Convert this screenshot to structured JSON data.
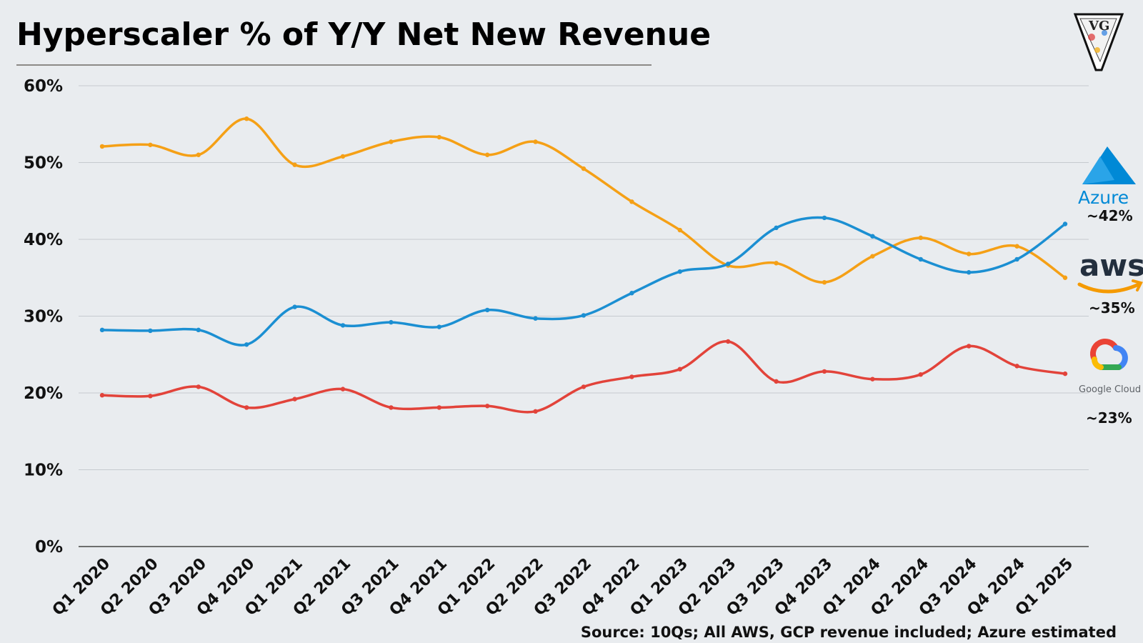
{
  "colors": {
    "background": "#e9ecef",
    "azure": "#1b8fd2",
    "aws": "#f5a016",
    "google": "#e2433a",
    "grid": "#c6cacf"
  },
  "header": {
    "title": "Hyperscaler % of Y/Y Net New Revenue",
    "brand_mark_letters": "VG",
    "brand_mark_icon": "vg-monogram-icon"
  },
  "footer": {
    "source": "Source: 10Qs; All AWS, GCP revenue included; Azure estimated"
  },
  "legend": {
    "placement": "right",
    "items": [
      {
        "series": "azure",
        "logo_icon": "azure-logo-icon",
        "logo_text": "Azure",
        "value_label": "~42%"
      },
      {
        "series": "aws",
        "logo_icon": "aws-logo-icon",
        "logo_text": "aws",
        "value_label": "~35%"
      },
      {
        "series": "google",
        "logo_icon": "google-cloud-logo-icon",
        "logo_text": "Google Cloud",
        "value_label": "~23%"
      }
    ]
  },
  "chart_data": {
    "type": "line",
    "title": "Hyperscaler % of Y/Y Net New Revenue",
    "xlabel": "",
    "ylabel": "",
    "ylim": [
      0,
      60
    ],
    "y_ticks": [
      "0%",
      "10%",
      "20%",
      "30%",
      "40%",
      "50%",
      "60%"
    ],
    "grid": true,
    "categories": [
      "Q1 2020",
      "Q2 2020",
      "Q3 2020",
      "Q4 2020",
      "Q1 2021",
      "Q2 2021",
      "Q3 2021",
      "Q4 2021",
      "Q1 2022",
      "Q2 2022",
      "Q3 2022",
      "Q4 2022",
      "Q1 2023",
      "Q2 2023",
      "Q3 2023",
      "Q4 2023",
      "Q1 2024",
      "Q2 2024",
      "Q3 2024",
      "Q4 2024",
      "Q1 2025"
    ],
    "series": [
      {
        "key": "aws",
        "values": [
          52.1,
          52.3,
          51.0,
          55.7,
          49.7,
          50.8,
          52.7,
          53.3,
          51.0,
          52.7,
          49.2,
          44.9,
          41.2,
          36.6,
          36.9,
          34.4,
          37.8,
          40.2,
          38.1,
          39.1,
          35.0
        ]
      },
      {
        "key": "azure",
        "values": [
          28.2,
          28.1,
          28.2,
          26.3,
          31.2,
          28.8,
          29.2,
          28.6,
          30.8,
          29.7,
          30.1,
          33.0,
          35.8,
          36.8,
          41.5,
          42.8,
          40.4,
          37.4,
          35.7,
          37.4,
          42.0
        ]
      },
      {
        "key": "google",
        "values": [
          19.7,
          19.6,
          20.8,
          18.1,
          19.2,
          20.5,
          18.1,
          18.1,
          18.3,
          17.6,
          20.8,
          22.1,
          23.1,
          26.7,
          21.5,
          22.8,
          21.8,
          22.4,
          26.1,
          23.5,
          22.5
        ]
      }
    ]
  }
}
